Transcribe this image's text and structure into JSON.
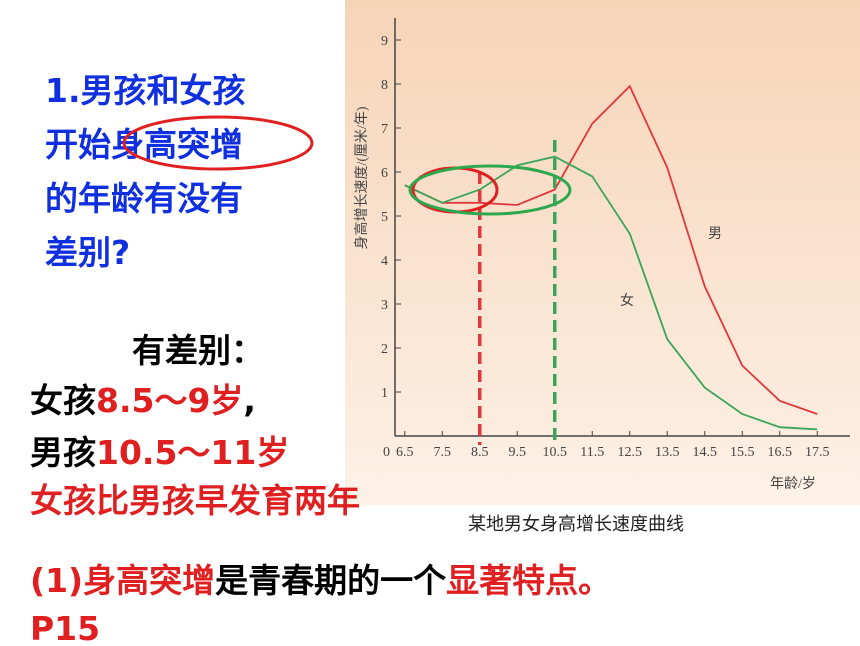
{
  "question": {
    "line1": "1.男孩和女孩",
    "line2a": "开始",
    "line2b": "身高突增",
    "line3": "的年龄有没有",
    "line4": "差别?"
  },
  "answer": {
    "head": "有差别：",
    "girl": "女孩",
    "girl_age": "8.5～9岁",
    "girl_end": ",",
    "boy": "男孩",
    "boy_age": "10.5～11岁",
    "conclusion": "女孩比男孩早发育两年"
  },
  "point": {
    "a": "(1)身高突增",
    "b": "是青春期的一个",
    "c": "显著特点。",
    "page": "P15"
  },
  "chart_data": {
    "type": "line",
    "caption": "某地男女身高增长速度曲线",
    "y_label": "身高增长速度/(厘米/年)",
    "x_label": "年龄/岁",
    "x": [
      6.5,
      7.5,
      8.5,
      9.5,
      10.5,
      11.5,
      12.5,
      13.5,
      14.5,
      15.5,
      16.5,
      17.5
    ],
    "xlim": [
      6,
      18
    ],
    "xticks": [
      6.5,
      7.5,
      8.5,
      9.5,
      10.5,
      11.5,
      12.5,
      13.5,
      14.5,
      15.5,
      16.5,
      17.5
    ],
    "ylim": [
      0,
      9.5
    ],
    "yticks": [
      0,
      1,
      2,
      3,
      4,
      5,
      6,
      7,
      8,
      9
    ],
    "series": [
      {
        "name": "男",
        "color": "#e0383c",
        "values": [
          5.7,
          5.3,
          5.3,
          5.25,
          5.6,
          7.1,
          7.95,
          6.1,
          3.4,
          1.6,
          0.8,
          0.5
        ]
      },
      {
        "name": "女",
        "color": "#3aa55a",
        "values": [
          5.7,
          5.3,
          5.6,
          6.15,
          6.35,
          5.9,
          4.6,
          2.2,
          1.1,
          0.5,
          0.2,
          0.15
        ]
      }
    ]
  }
}
